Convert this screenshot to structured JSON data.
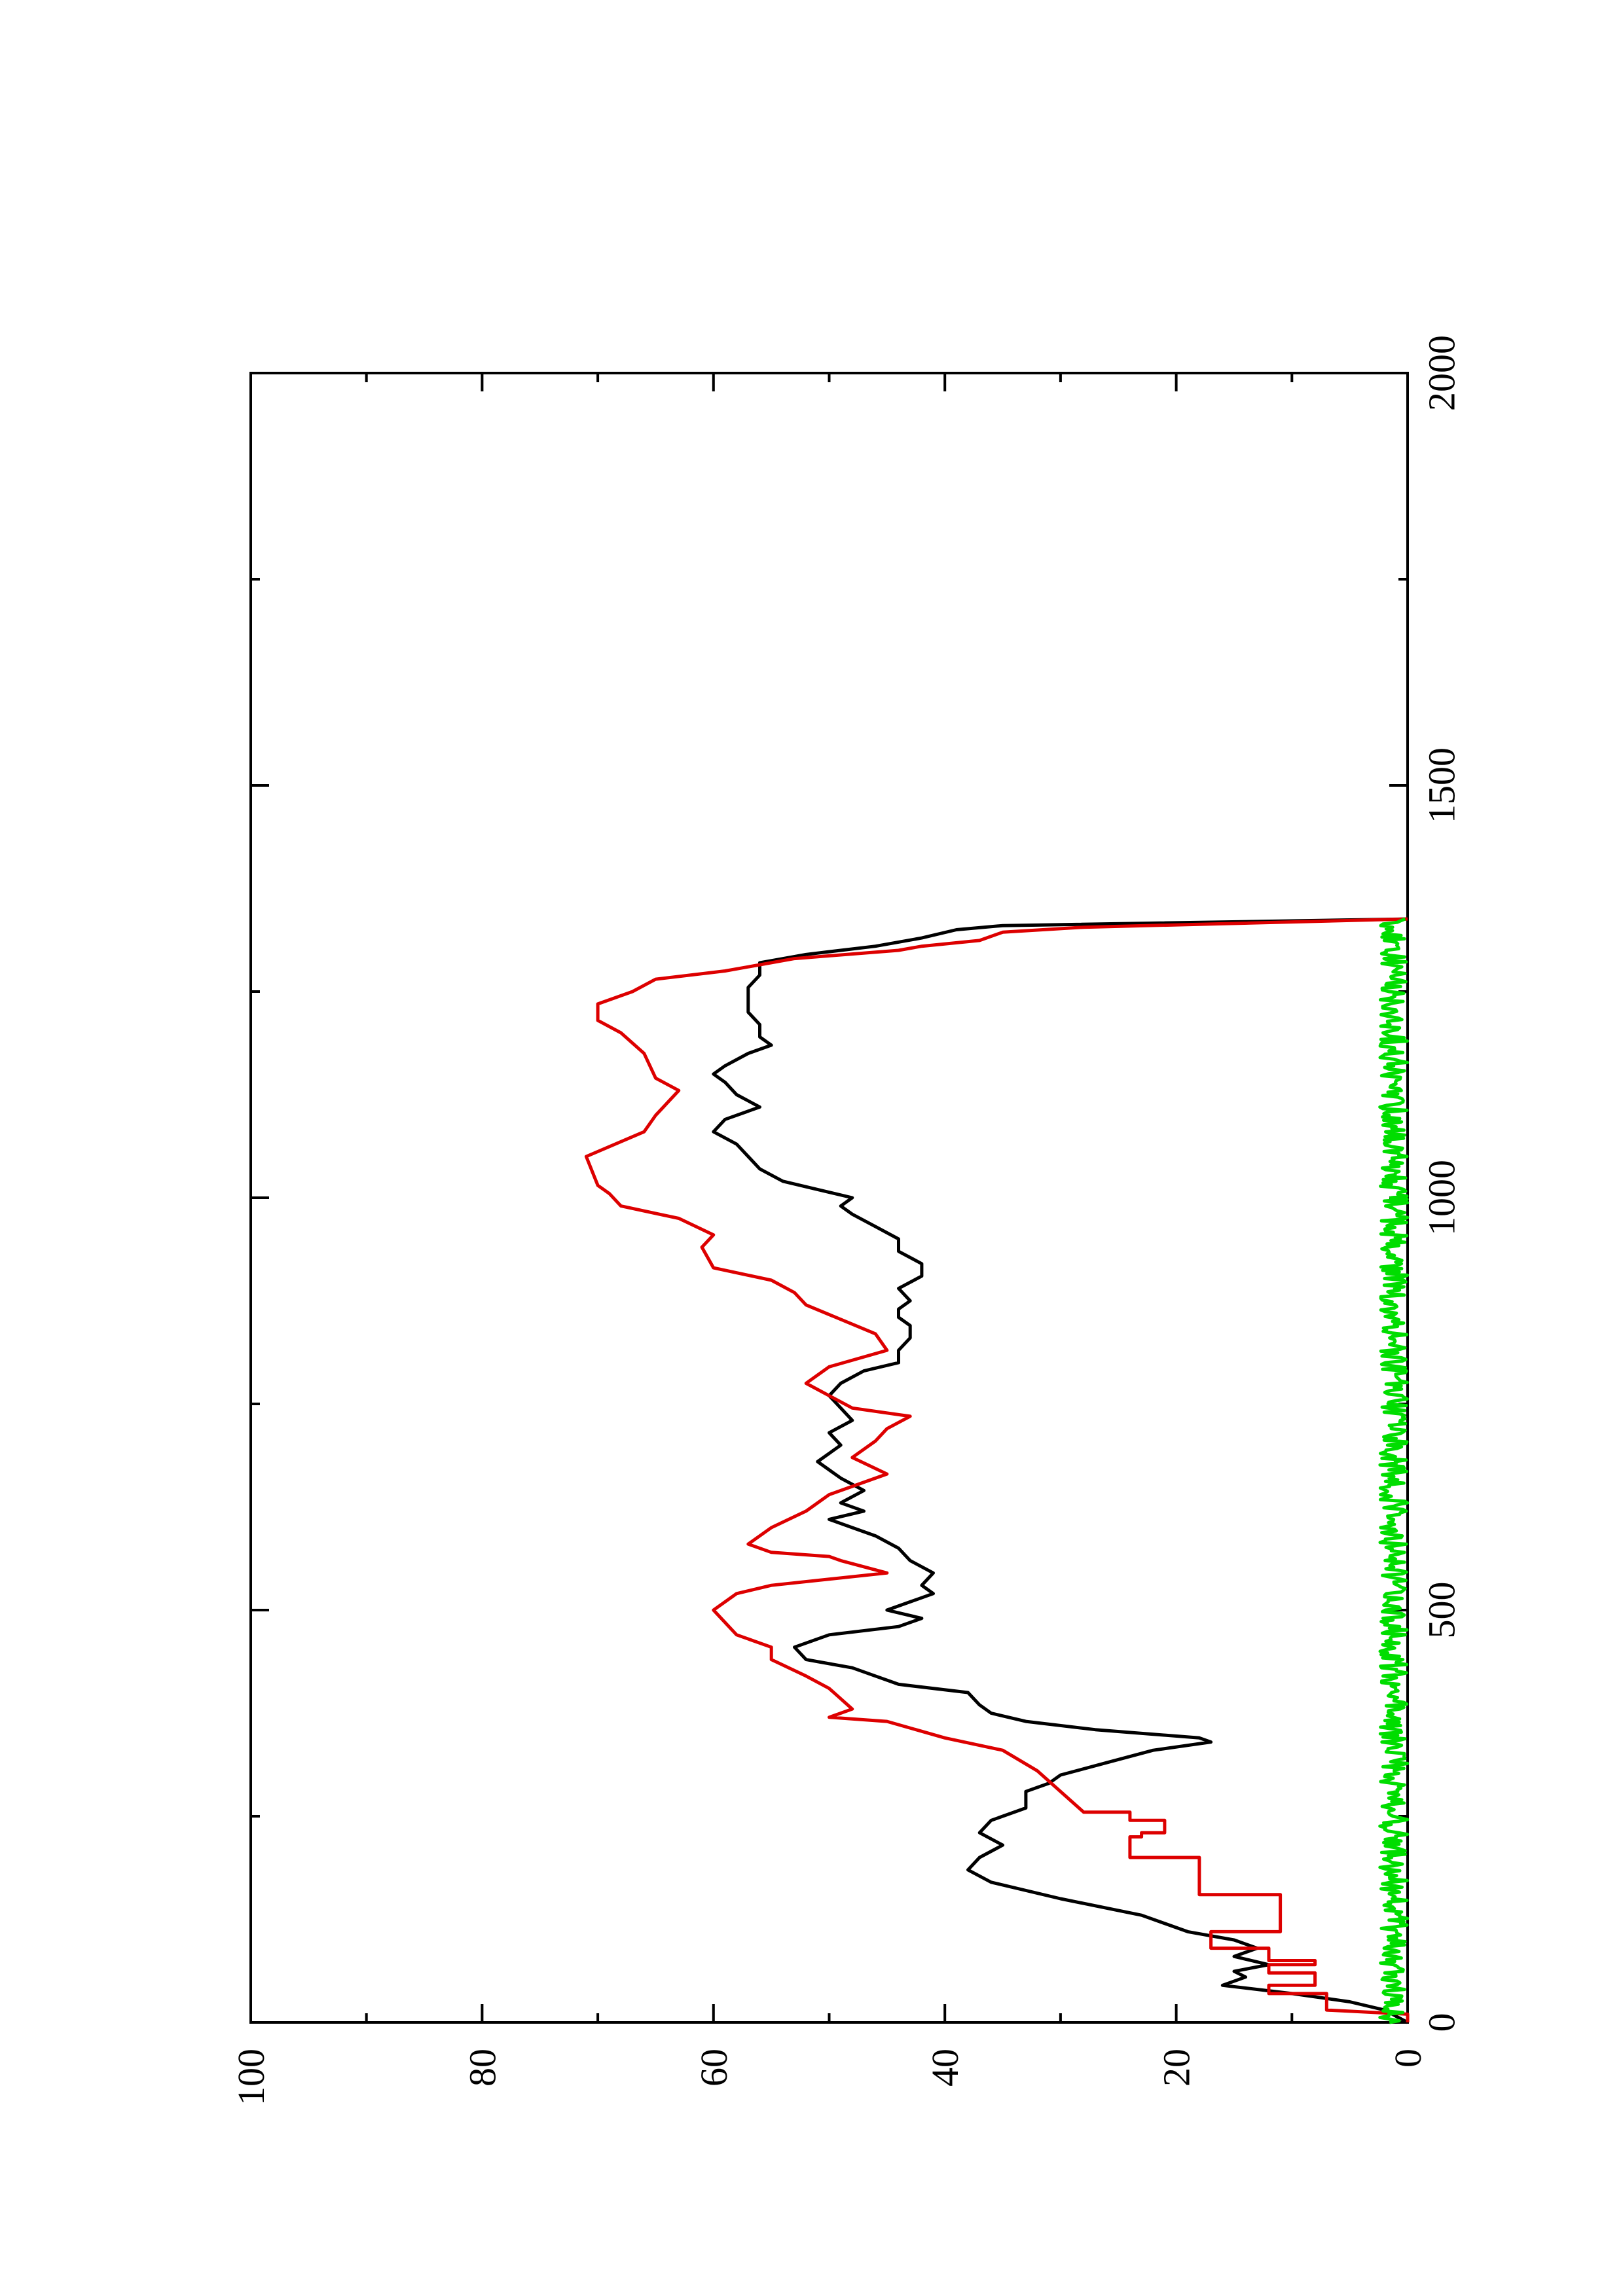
{
  "chart_data": {
    "type": "line",
    "orientation": "rotated-90-counterclockwise",
    "title": "",
    "xlabel": "",
    "ylabel": "",
    "xlim": [
      0,
      2000
    ],
    "ylim": [
      0,
      100
    ],
    "x_ticks": [
      0,
      500,
      1000,
      1500,
      2000
    ],
    "x_minor_ticks": [
      250,
      750,
      1250,
      1750
    ],
    "y_ticks": [
      0,
      20,
      40,
      60,
      80,
      100
    ],
    "y_minor_ticks": [
      10,
      30,
      50,
      70,
      90
    ],
    "grid": false,
    "legend": "none",
    "series": [
      {
        "color": "#000000",
        "points": [
          [
            0,
            0
          ],
          [
            15,
            2
          ],
          [
            25,
            5
          ],
          [
            35,
            10
          ],
          [
            45,
            16
          ],
          [
            55,
            14
          ],
          [
            62,
            15
          ],
          [
            70,
            12
          ],
          [
            80,
            15
          ],
          [
            90,
            13
          ],
          [
            100,
            15
          ],
          [
            110,
            19
          ],
          [
            130,
            23
          ],
          [
            150,
            30
          ],
          [
            170,
            36
          ],
          [
            185,
            38
          ],
          [
            200,
            37
          ],
          [
            215,
            35
          ],
          [
            230,
            37
          ],
          [
            245,
            36
          ],
          [
            260,
            33
          ],
          [
            280,
            33
          ],
          [
            290,
            31
          ],
          [
            300,
            30
          ],
          [
            315,
            26
          ],
          [
            330,
            22
          ],
          [
            340,
            17
          ],
          [
            345,
            18
          ],
          [
            355,
            27
          ],
          [
            365,
            33
          ],
          [
            375,
            36
          ],
          [
            385,
            37
          ],
          [
            400,
            38
          ],
          [
            410,
            44
          ],
          [
            420,
            46
          ],
          [
            430,
            48
          ],
          [
            440,
            52
          ],
          [
            455,
            53
          ],
          [
            470,
            50
          ],
          [
            480,
            44
          ],
          [
            490,
            42
          ],
          [
            500,
            45
          ],
          [
            510,
            43
          ],
          [
            520,
            41
          ],
          [
            530,
            42
          ],
          [
            545,
            41
          ],
          [
            560,
            43
          ],
          [
            575,
            44
          ],
          [
            590,
            46
          ],
          [
            600,
            48
          ],
          [
            610,
            50
          ],
          [
            620,
            47
          ],
          [
            630,
            49
          ],
          [
            645,
            47
          ],
          [
            660,
            49
          ],
          [
            680,
            51
          ],
          [
            700,
            49
          ],
          [
            715,
            50
          ],
          [
            730,
            48
          ],
          [
            745,
            49
          ],
          [
            760,
            50
          ],
          [
            775,
            49
          ],
          [
            790,
            47
          ],
          [
            800,
            44
          ],
          [
            815,
            44
          ],
          [
            830,
            43
          ],
          [
            845,
            43
          ],
          [
            855,
            44
          ],
          [
            865,
            44
          ],
          [
            875,
            43
          ],
          [
            890,
            44
          ],
          [
            905,
            42
          ],
          [
            920,
            42
          ],
          [
            935,
            44
          ],
          [
            950,
            44
          ],
          [
            965,
            46
          ],
          [
            980,
            48
          ],
          [
            990,
            49
          ],
          [
            1000,
            48
          ],
          [
            1010,
            51
          ],
          [
            1020,
            54
          ],
          [
            1035,
            56
          ],
          [
            1050,
            57
          ],
          [
            1065,
            58
          ],
          [
            1080,
            60
          ],
          [
            1095,
            59
          ],
          [
            1110,
            56
          ],
          [
            1125,
            58
          ],
          [
            1140,
            59
          ],
          [
            1150,
            60
          ],
          [
            1160,
            59
          ],
          [
            1175,
            57
          ],
          [
            1185,
            55
          ],
          [
            1195,
            56
          ],
          [
            1210,
            56
          ],
          [
            1225,
            57
          ],
          [
            1240,
            57
          ],
          [
            1255,
            57
          ],
          [
            1270,
            56
          ],
          [
            1285,
            56
          ],
          [
            1295,
            52
          ],
          [
            1305,
            46
          ],
          [
            1315,
            42
          ],
          [
            1325,
            39
          ],
          [
            1330,
            35
          ],
          [
            1338,
            0
          ]
        ]
      },
      {
        "color": "#dd0000",
        "points": [
          [
            0,
            0
          ],
          [
            10,
            0
          ],
          [
            15,
            7
          ],
          [
            35,
            7
          ],
          [
            35,
            12
          ],
          [
            45,
            12
          ],
          [
            45,
            8
          ],
          [
            60,
            8
          ],
          [
            60,
            12
          ],
          [
            70,
            12
          ],
          [
            70,
            8
          ],
          [
            75,
            8
          ],
          [
            75,
            12
          ],
          [
            90,
            12
          ],
          [
            90,
            17
          ],
          [
            110,
            17
          ],
          [
            110,
            11
          ],
          [
            155,
            11
          ],
          [
            155,
            18
          ],
          [
            200,
            18
          ],
          [
            200,
            24
          ],
          [
            225,
            24
          ],
          [
            225,
            23
          ],
          [
            230,
            23
          ],
          [
            230,
            21
          ],
          [
            245,
            21
          ],
          [
            245,
            24
          ],
          [
            255,
            24
          ],
          [
            255,
            28
          ],
          [
            305,
            32
          ],
          [
            330,
            35
          ],
          [
            345,
            40
          ],
          [
            365,
            45
          ],
          [
            370,
            50
          ],
          [
            380,
            48
          ],
          [
            405,
            50
          ],
          [
            420,
            52
          ],
          [
            440,
            55
          ],
          [
            455,
            55
          ],
          [
            470,
            58
          ],
          [
            500,
            60
          ],
          [
            520,
            58
          ],
          [
            530,
            55
          ],
          [
            545,
            45
          ],
          [
            560,
            49
          ],
          [
            565,
            50
          ],
          [
            570,
            55
          ],
          [
            580,
            57
          ],
          [
            600,
            55
          ],
          [
            620,
            52
          ],
          [
            640,
            50
          ],
          [
            650,
            48
          ],
          [
            665,
            45
          ],
          [
            685,
            48
          ],
          [
            705,
            46
          ],
          [
            720,
            45
          ],
          [
            735,
            43
          ],
          [
            745,
            48
          ],
          [
            760,
            50
          ],
          [
            775,
            52
          ],
          [
            795,
            50
          ],
          [
            815,
            45
          ],
          [
            835,
            46
          ],
          [
            870,
            52
          ],
          [
            885,
            53
          ],
          [
            900,
            55
          ],
          [
            915,
            60
          ],
          [
            940,
            61
          ],
          [
            955,
            60
          ],
          [
            975,
            63
          ],
          [
            990,
            68
          ],
          [
            1005,
            69
          ],
          [
            1015,
            70
          ],
          [
            1050,
            71
          ],
          [
            1080,
            66
          ],
          [
            1100,
            65
          ],
          [
            1130,
            63
          ],
          [
            1145,
            65
          ],
          [
            1175,
            66
          ],
          [
            1200,
            68
          ],
          [
            1215,
            70
          ],
          [
            1235,
            70
          ],
          [
            1250,
            67
          ],
          [
            1265,
            65
          ],
          [
            1275,
            59
          ],
          [
            1290,
            53
          ],
          [
            1300,
            44
          ],
          [
            1305,
            42
          ],
          [
            1312,
            37
          ],
          [
            1322,
            35
          ],
          [
            1328,
            28
          ],
          [
            1338,
            0
          ]
        ]
      },
      {
        "color": "#00dd00",
        "points": "noise"
      }
    ]
  }
}
